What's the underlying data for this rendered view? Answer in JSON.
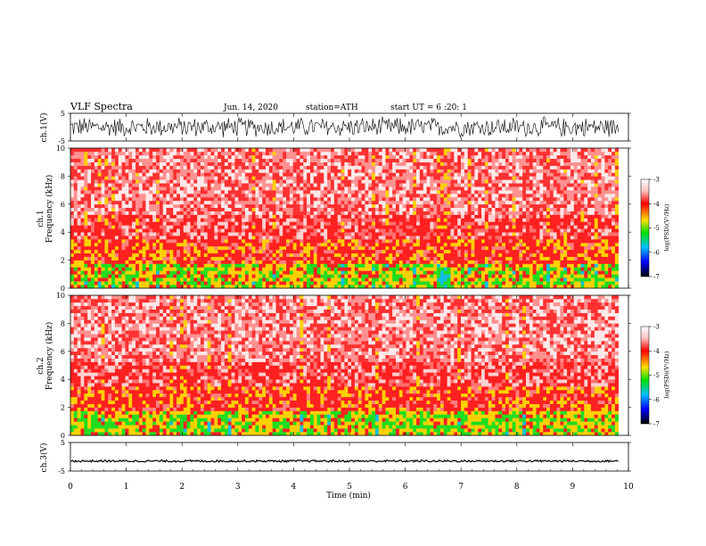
{
  "header": {
    "title": "VLF Spectra",
    "date": "Jun. 14, 2020",
    "station": "station=ATH",
    "start": "start UT =  6 :20: 1"
  },
  "chart_data": [
    {
      "type": "line",
      "name": "ch1-waveform",
      "ylabel": "ch.1(V)",
      "ylim": [
        -5,
        5
      ],
      "yticks": [
        "5",
        "-5"
      ],
      "x_range_min": [
        0,
        9.82
      ],
      "amplitude_envelope_V": [
        -4.0,
        4.0
      ]
    },
    {
      "type": "heatmap",
      "name": "ch1-spectrogram",
      "ylabel": [
        "ch.1",
        "Frequency (kHz)"
      ],
      "ylim": [
        0,
        10
      ],
      "yticks": [
        "0",
        "2",
        "4",
        "6",
        "8",
        "10"
      ],
      "x_range_min": [
        0,
        9.82
      ],
      "colorbar": {
        "label": "log(PSD)(V²/Hz)",
        "range": [
          -7,
          -3
        ],
        "ticks": [
          "-3",
          "-4",
          "-5",
          "-6",
          "-7"
        ]
      }
    },
    {
      "type": "heatmap",
      "name": "ch2-spectrogram",
      "ylabel": [
        "ch.2",
        "Frequency (kHz)"
      ],
      "ylim": [
        0,
        10
      ],
      "yticks": [
        "0",
        "2",
        "4",
        "6",
        "8",
        "10"
      ],
      "x_range_min": [
        0,
        9.82
      ],
      "colorbar": {
        "label": "log(PSD)(V²/Hz)",
        "range": [
          -7,
          -3
        ],
        "ticks": [
          "-3",
          "-4",
          "-5",
          "-6",
          "-7"
        ]
      }
    },
    {
      "type": "line",
      "name": "ch3-waveform",
      "ylabel": "ch.3(V)",
      "ylim": [
        -5,
        5
      ],
      "yticks": [
        "5",
        "-5"
      ],
      "x_range_min": [
        0,
        9.82
      ],
      "baseline_V": -1.5
    }
  ],
  "xaxis": {
    "label": "Time (min)",
    "ticks": [
      "0",
      "1",
      "2",
      "3",
      "4",
      "5",
      "6",
      "7",
      "8",
      "9",
      "10"
    ],
    "range": [
      0,
      10
    ]
  },
  "colors": {
    "background": "#ffffff",
    "spectro_main": "#ff2020",
    "spectro_mid": "#ffd000",
    "spectro_low": "#20dd20"
  }
}
